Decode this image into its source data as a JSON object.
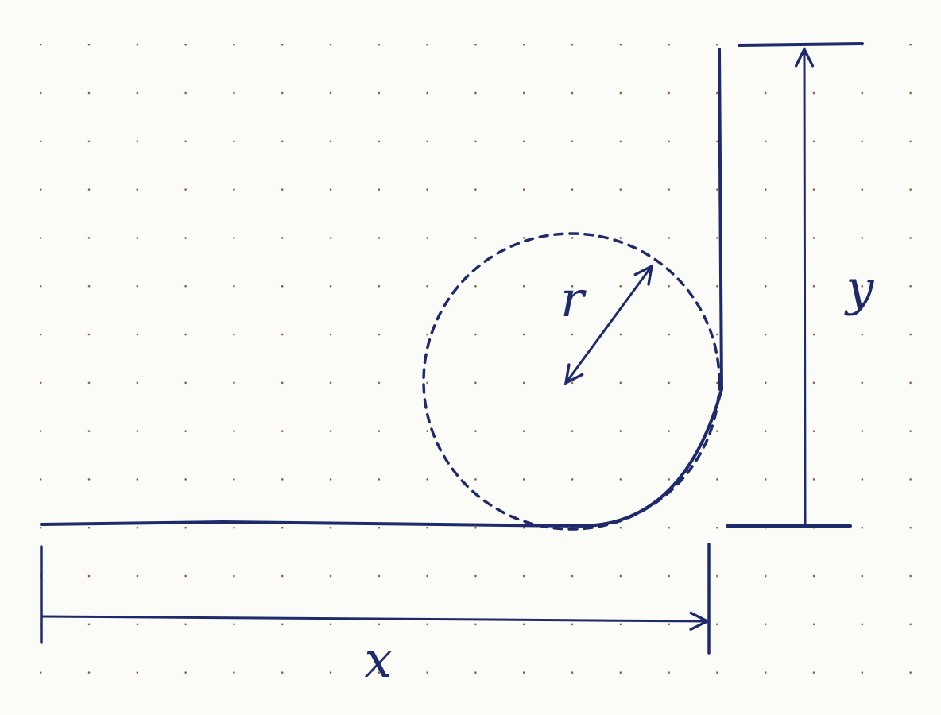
{
  "labels": {
    "x": "x",
    "y": "y",
    "r": "r"
  }
}
